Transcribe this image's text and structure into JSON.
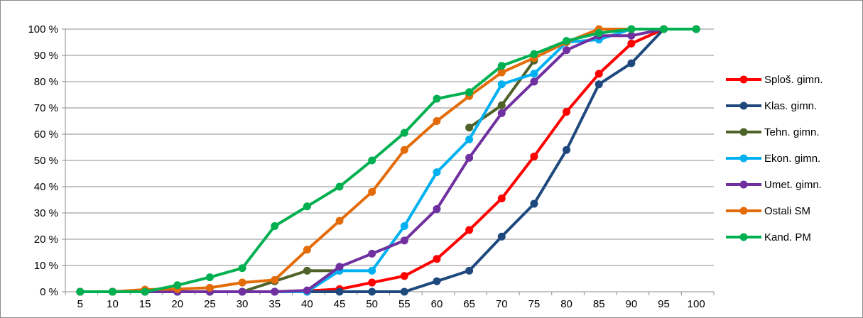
{
  "chart_data": {
    "type": "line",
    "title": "",
    "xlabel": "",
    "ylabel": "",
    "x": [
      5,
      10,
      15,
      20,
      25,
      30,
      35,
      40,
      45,
      50,
      55,
      60,
      65,
      70,
      75,
      80,
      85,
      90,
      95,
      100
    ],
    "x_tick_labels": [
      "5",
      "10",
      "15",
      "20",
      "25",
      "30",
      "35",
      "40",
      "45",
      "50",
      "55",
      "60",
      "65",
      "70",
      "75",
      "80",
      "85",
      "90",
      "95",
      "100"
    ],
    "ylim": [
      0,
      100
    ],
    "y_ticks": [
      0,
      10,
      20,
      30,
      40,
      50,
      60,
      70,
      80,
      90,
      100
    ],
    "y_tick_labels": [
      "0 %",
      "10 %",
      "20 %",
      "30 %",
      "40 %",
      "50 %",
      "60 %",
      "70 %",
      "80 %",
      "90 %",
      "100 %"
    ],
    "grid": "horizontal",
    "legend_position": "right",
    "series": [
      {
        "name": "Sploš. gimn.",
        "color": "#ff0000",
        "values": [
          0,
          0,
          0,
          0,
          0,
          0,
          0,
          0.3,
          1,
          3.5,
          6,
          12.5,
          23.5,
          35.5,
          51.5,
          68.5,
          83,
          94.5,
          100,
          100
        ]
      },
      {
        "name": "Klas. gimn.",
        "color": "#1f497d",
        "values": [
          0,
          0,
          0,
          0,
          0,
          0,
          0,
          0,
          0,
          0,
          0,
          4,
          8,
          21,
          33.5,
          54,
          79,
          87,
          100,
          100
        ]
      },
      {
        "name": "Tehn. gimn.",
        "color": "#4f6228",
        "values": [
          0,
          0,
          0,
          0,
          0,
          0,
          4,
          8,
          8,
          null,
          null,
          null,
          62.5,
          71,
          88,
          null,
          null,
          null,
          null,
          null
        ]
      },
      {
        "name": "Ekon. gimn.",
        "color": "#00b0f0",
        "values": [
          0,
          0,
          0,
          0,
          0,
          0,
          0,
          0,
          8,
          8,
          25,
          45.5,
          58,
          79,
          83,
          95,
          96,
          100,
          100,
          100
        ]
      },
      {
        "name": "Umet. gimn.",
        "color": "#7030a0",
        "values": [
          0,
          0,
          0,
          0,
          0,
          0,
          0,
          0.5,
          9.5,
          14.5,
          19.5,
          31.5,
          51,
          68,
          80,
          92,
          97.5,
          97.5,
          100,
          100
        ]
      },
      {
        "name": "Ostali SM",
        "color": "#e36c09",
        "values": [
          0,
          0,
          0.8,
          1,
          1.5,
          3.5,
          4.5,
          16,
          27,
          38,
          54,
          65,
          74.5,
          83.5,
          89,
          95,
          100,
          100,
          100,
          100
        ]
      },
      {
        "name": "Kand. PM",
        "color": "#00b050",
        "values": [
          0,
          0,
          0,
          2.5,
          5.5,
          9,
          25,
          32.5,
          40,
          50,
          60.5,
          73.5,
          76,
          86,
          90.5,
          95.5,
          98.5,
          100,
          100,
          100
        ]
      }
    ]
  }
}
